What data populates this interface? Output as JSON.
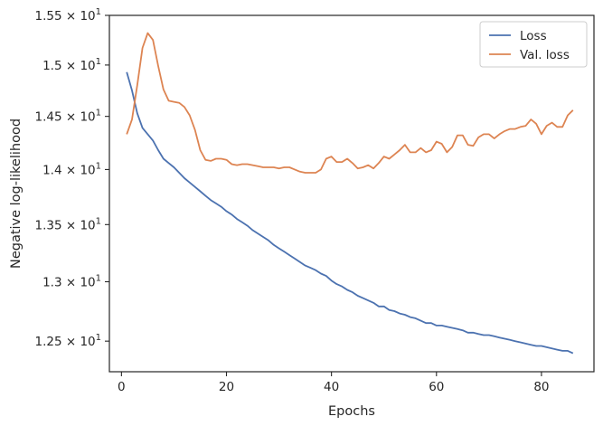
{
  "chart_data": {
    "type": "line",
    "xlabel": "Epochs",
    "ylabel": "Negative log-likelihood",
    "xlim": [
      -2.3,
      90
    ],
    "ylim": [
      12.25,
      15.5
    ],
    "yscale": "log",
    "xticks": [
      0,
      20,
      40,
      60,
      80
    ],
    "xtick_labels": [
      "0",
      "20",
      "40",
      "60",
      "80"
    ],
    "yticks": [
      12.5,
      13.0,
      13.5,
      14.0,
      14.5,
      15.0,
      15.5
    ],
    "ytick_mantissas": [
      "1.25",
      "1.3",
      "1.35",
      "1.4",
      "1.45",
      "1.5",
      "1.55"
    ],
    "ytick_times": "×",
    "ytick_base": "10",
    "ytick_exp": "1",
    "grid": false,
    "legend": "top-right",
    "x": [
      1,
      2,
      3,
      4,
      5,
      6,
      7,
      8,
      9,
      10,
      11,
      12,
      13,
      14,
      15,
      16,
      17,
      18,
      19,
      20,
      21,
      22,
      23,
      24,
      25,
      26,
      27,
      28,
      29,
      30,
      31,
      32,
      33,
      34,
      35,
      36,
      37,
      38,
      39,
      40,
      41,
      42,
      43,
      44,
      45,
      46,
      47,
      48,
      49,
      50,
      51,
      52,
      53,
      54,
      55,
      56,
      57,
      58,
      59,
      60,
      61,
      62,
      63,
      64,
      65,
      66,
      67,
      68,
      69,
      70,
      71,
      72,
      73,
      74,
      75,
      76,
      77,
      78,
      79,
      80,
      81,
      82,
      83,
      84,
      85,
      86
    ],
    "series": [
      {
        "name": "Loss",
        "color": "#4c72b0",
        "values": [
          14.93,
          14.75,
          14.53,
          14.39,
          14.33,
          14.27,
          14.18,
          14.1,
          14.06,
          14.02,
          13.97,
          13.92,
          13.88,
          13.84,
          13.8,
          13.76,
          13.72,
          13.69,
          13.66,
          13.62,
          13.59,
          13.55,
          13.52,
          13.49,
          13.45,
          13.42,
          13.39,
          13.36,
          13.32,
          13.29,
          13.26,
          13.23,
          13.2,
          13.17,
          13.14,
          13.12,
          13.1,
          13.07,
          13.05,
          13.01,
          12.98,
          12.96,
          12.93,
          12.91,
          12.88,
          12.86,
          12.84,
          12.82,
          12.79,
          12.79,
          12.76,
          12.75,
          12.73,
          12.72,
          12.7,
          12.69,
          12.67,
          12.65,
          12.65,
          12.63,
          12.63,
          12.62,
          12.61,
          12.6,
          12.59,
          12.57,
          12.57,
          12.56,
          12.55,
          12.55,
          12.54,
          12.53,
          12.52,
          12.51,
          12.5,
          12.49,
          12.48,
          12.47,
          12.46,
          12.46,
          12.45,
          12.44,
          12.43,
          12.42,
          12.42,
          12.4
        ]
      },
      {
        "name": "Val. loss",
        "color": "#dd8452",
        "values": [
          14.33,
          14.47,
          14.8,
          15.17,
          15.32,
          15.25,
          14.99,
          14.76,
          14.65,
          14.64,
          14.63,
          14.59,
          14.51,
          14.37,
          14.18,
          14.09,
          14.08,
          14.1,
          14.1,
          14.09,
          14.05,
          14.04,
          14.05,
          14.05,
          14.04,
          14.03,
          14.02,
          14.02,
          14.02,
          14.01,
          14.02,
          14.02,
          14.0,
          13.98,
          13.97,
          13.97,
          13.97,
          14.0,
          14.1,
          14.12,
          14.07,
          14.07,
          14.1,
          14.06,
          14.01,
          14.02,
          14.04,
          14.01,
          14.06,
          14.12,
          14.1,
          14.14,
          14.18,
          14.23,
          14.16,
          14.16,
          14.2,
          14.16,
          14.18,
          14.26,
          14.24,
          14.16,
          14.21,
          14.32,
          14.32,
          14.23,
          14.22,
          14.3,
          14.33,
          14.33,
          14.29,
          14.33,
          14.36,
          14.38,
          14.38,
          14.4,
          14.41,
          14.47,
          14.43,
          14.33,
          14.41,
          14.44,
          14.4,
          14.4,
          14.51,
          14.56
        ]
      }
    ]
  }
}
